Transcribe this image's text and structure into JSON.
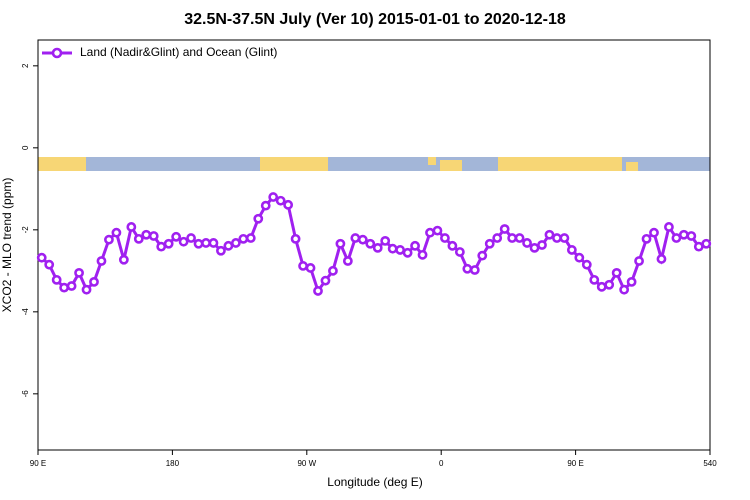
{
  "chart_data": {
    "type": "line",
    "title": "32.5N-37.5N July (Ver 10)   2015-01-01 to 2020-12-18",
    "x_label": "Longitude (deg E)",
    "y_label": "XCO2 - MLO trend (ppm)",
    "xlim": [
      90,
      540
    ],
    "ylim": [
      -7.37,
      2.63
    ],
    "xticks": [
      {
        "value": 90,
        "label": "90 E"
      },
      180,
      {
        "value": 270,
        "label": "90 W"
      },
      {
        "value": 360,
        "label": "0"
      },
      {
        "value": 450,
        "label": "90 E"
      },
      540
    ],
    "yticks": [
      2,
      0,
      -2,
      -4,
      -6
    ],
    "legend": "top-left",
    "x": [
      92.5,
      97.5,
      102.5,
      107.5,
      112.5,
      117.5,
      122.5,
      127.5,
      132.5,
      137.5,
      142.5,
      147.5,
      152.5,
      157.5,
      162.5,
      167.5,
      172.5,
      177.5,
      182.5,
      187.5,
      192.5,
      197.5,
      202.5,
      207.5,
      212.5,
      217.5,
      222.5,
      227.5,
      232.5,
      237.5,
      242.5,
      247.5,
      252.5,
      257.5,
      262.5,
      267.5,
      272.5,
      277.5,
      282.5,
      287.5,
      292.5,
      297.5,
      302.5,
      307.5,
      312.5,
      317.5,
      322.5,
      327.5,
      332.5,
      337.5,
      342.5,
      347.5,
      352.5,
      357.5,
      362.5,
      367.5,
      372.5,
      377.5,
      382.5,
      387.5,
      392.5,
      397.5,
      402.5,
      407.5,
      412.5,
      417.5,
      422.5,
      427.5,
      432.5,
      437.5,
      442.5,
      447.5,
      452.5,
      457.5,
      462.5,
      467.5,
      472.5,
      477.5,
      482.5,
      487.5,
      492.5,
      497.5,
      502.5,
      507.5,
      512.5,
      517.5,
      522.5,
      527.5,
      532.5,
      537.5
    ],
    "series": [
      {
        "name": "Land (Nadir&Glint) and Ocean (Glint)",
        "color": "#a020f0",
        "values": [
          -2.68,
          -2.85,
          -3.22,
          -3.41,
          -3.37,
          -3.05,
          -3.46,
          -3.27,
          -2.76,
          -2.24,
          -2.07,
          -2.73,
          -1.93,
          -2.22,
          -2.12,
          -2.15,
          -2.41,
          -2.34,
          -2.17,
          -2.29,
          -2.2,
          -2.34,
          -2.32,
          -2.32,
          -2.51,
          -2.39,
          -2.32,
          -2.22,
          -2.2,
          -1.73,
          -1.41,
          -1.2,
          -1.29,
          -1.39,
          -2.22,
          -2.88,
          -2.93,
          -3.49,
          -3.24,
          -3.0,
          -2.34,
          -2.76,
          -2.2,
          -2.24,
          -2.34,
          -2.44,
          -2.27,
          -2.46,
          -2.49,
          -2.56,
          -2.39,
          -2.61,
          -2.07,
          -2.02,
          -2.2,
          -2.39,
          -2.54,
          -2.95,
          -2.98,
          -2.63,
          -2.34,
          -2.2,
          -1.98,
          -2.2,
          -2.2,
          -2.32,
          -2.44,
          -2.37,
          -2.12,
          -2.2,
          -2.2,
          -2.49,
          -2.68,
          -2.85,
          -3.22,
          -3.39,
          -3.34,
          -3.05,
          -3.46,
          -3.27,
          -2.76,
          -2.22,
          -2.07,
          -2.71,
          -1.93,
          -2.2,
          -2.12,
          -2.15,
          -2.41,
          -2.34
        ]
      }
    ]
  }
}
